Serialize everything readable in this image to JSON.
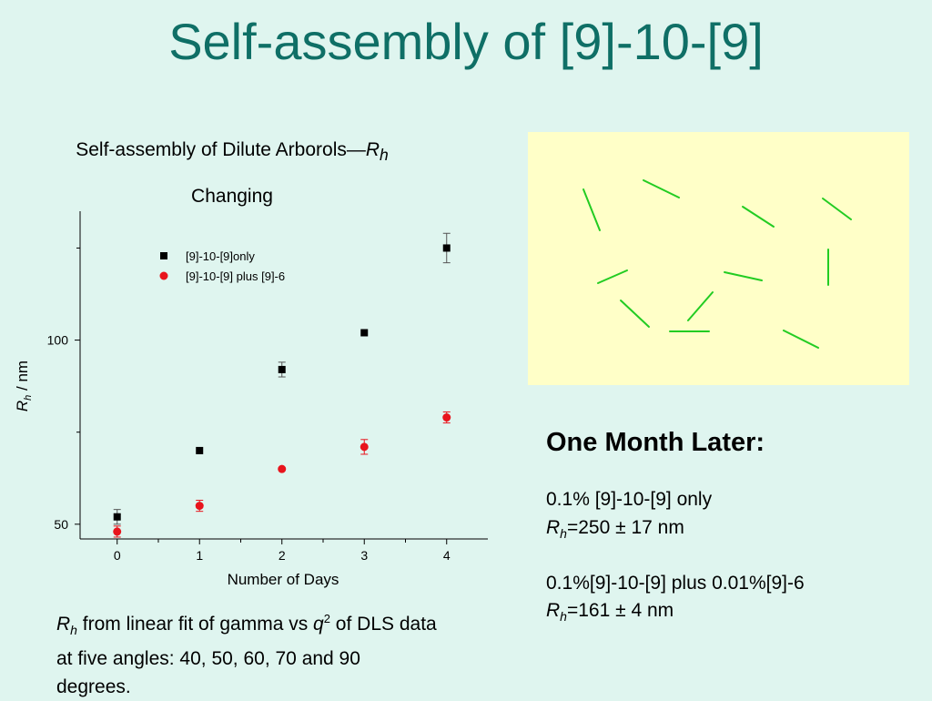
{
  "slide_title": "Self-assembly of [9]-10-[9]",
  "chart_title": {
    "line1_prefix": "Self-assembly of Dilute Arborols—",
    "line1_symbol": "R",
    "line1_subscript": "h",
    "line2": "Changing"
  },
  "chart_data": {
    "type": "scatter",
    "xlabel": "Number of Days",
    "ylabel_symbol": "R",
    "ylabel_subscript": "h",
    "ylabel_unit": " / nm",
    "xlim": [
      -0.45,
      4.5
    ],
    "ylim": [
      46,
      135
    ],
    "x_ticks": [
      0,
      1,
      2,
      3,
      4
    ],
    "y_ticks": [
      50,
      100
    ],
    "y_minor_ticks": [
      75,
      125
    ],
    "x_minor_ticks": [
      0.5,
      1.5,
      2.5,
      3.5
    ],
    "legend_position": "top-left",
    "series": [
      {
        "name": "[9]-10-[9]only",
        "marker": "square",
        "color": "#000000",
        "x": [
          0,
          1,
          2,
          3,
          4
        ],
        "y": [
          52,
          70,
          92,
          102,
          125
        ],
        "error": [
          2,
          0.5,
          2,
          0.5,
          4
        ]
      },
      {
        "name": "[9]-10-[9] plus [9]-6",
        "marker": "circle",
        "color": "#e8141c",
        "x": [
          0,
          1,
          2,
          3,
          4
        ],
        "y": [
          48,
          55,
          65,
          71,
          79
        ],
        "error": [
          1.5,
          1.5,
          0.5,
          2,
          1.5
        ]
      }
    ]
  },
  "panel": {
    "background": "#ffffc8",
    "line_color": "#22cc22"
  },
  "later": {
    "heading": "One Month Later:",
    "item1_line1": "0.1% [9]-10-[9] only",
    "item1_symbol": "R",
    "item1_subscript": "h",
    "item1_value": "=250 ± 17 nm",
    "item2_line1": "0.1%[9]-10-[9] plus 0.01%[9]-6",
    "item2_symbol": "R",
    "item2_subscript": "h",
    "item2_value": "=161 ± 4 nm"
  },
  "note": {
    "symbol": "R",
    "subscript": "h",
    "text_a": " from linear fit of gamma vs ",
    "q": "q",
    "q_exp": "2",
    "text_b": " of DLS data at five angles: 40, 50, 60, 70 and 90 degrees."
  }
}
